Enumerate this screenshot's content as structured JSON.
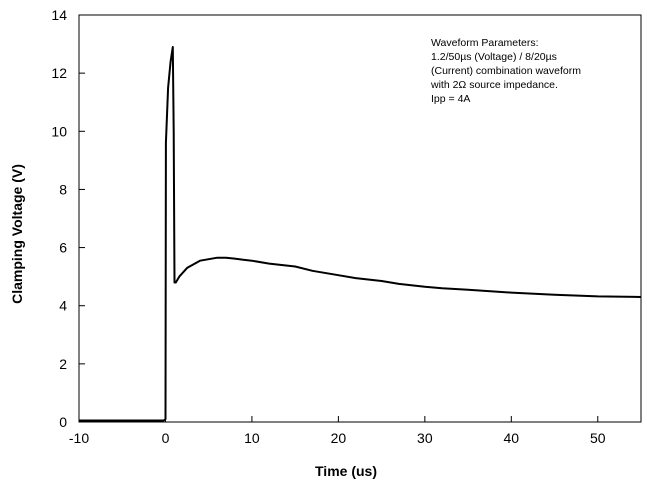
{
  "chart_data": {
    "type": "line",
    "xlabel": "Time (us)",
    "ylabel": "Clamping Voltage (V)",
    "xlim": [
      -10,
      55
    ],
    "ylim": [
      0,
      14
    ],
    "xticks": [
      -10,
      0,
      10,
      20,
      30,
      40,
      50
    ],
    "yticks": [
      0,
      2,
      4,
      6,
      8,
      10,
      12,
      14
    ],
    "grid": false,
    "annotation": [
      "Waveform Parameters:",
      "1.2/50µs (Voltage) / 8/20µs",
      "(Current) combination waveform",
      "with 2Ω source impedance.",
      "Ipp = 4A"
    ],
    "series": [
      {
        "color": "#000000",
        "x": [
          -10,
          -5,
          -0.2,
          0,
          0.05,
          0.3,
          0.6,
          0.85,
          0.95,
          1.05,
          1.2,
          1.6,
          2.5,
          4,
          5,
          6,
          7,
          8,
          9,
          10,
          12,
          15,
          17,
          20,
          22,
          25,
          27,
          30,
          32,
          35,
          40,
          45,
          50,
          55
        ],
        "y": [
          0.05,
          0.05,
          0.05,
          0.1,
          9.6,
          11.5,
          12.4,
          12.9,
          10,
          4.8,
          4.8,
          5.0,
          5.3,
          5.55,
          5.6,
          5.65,
          5.65,
          5.62,
          5.58,
          5.55,
          5.45,
          5.35,
          5.2,
          5.05,
          4.95,
          4.85,
          4.75,
          4.65,
          4.6,
          4.55,
          4.45,
          4.38,
          4.32,
          4.3
        ]
      }
    ]
  }
}
